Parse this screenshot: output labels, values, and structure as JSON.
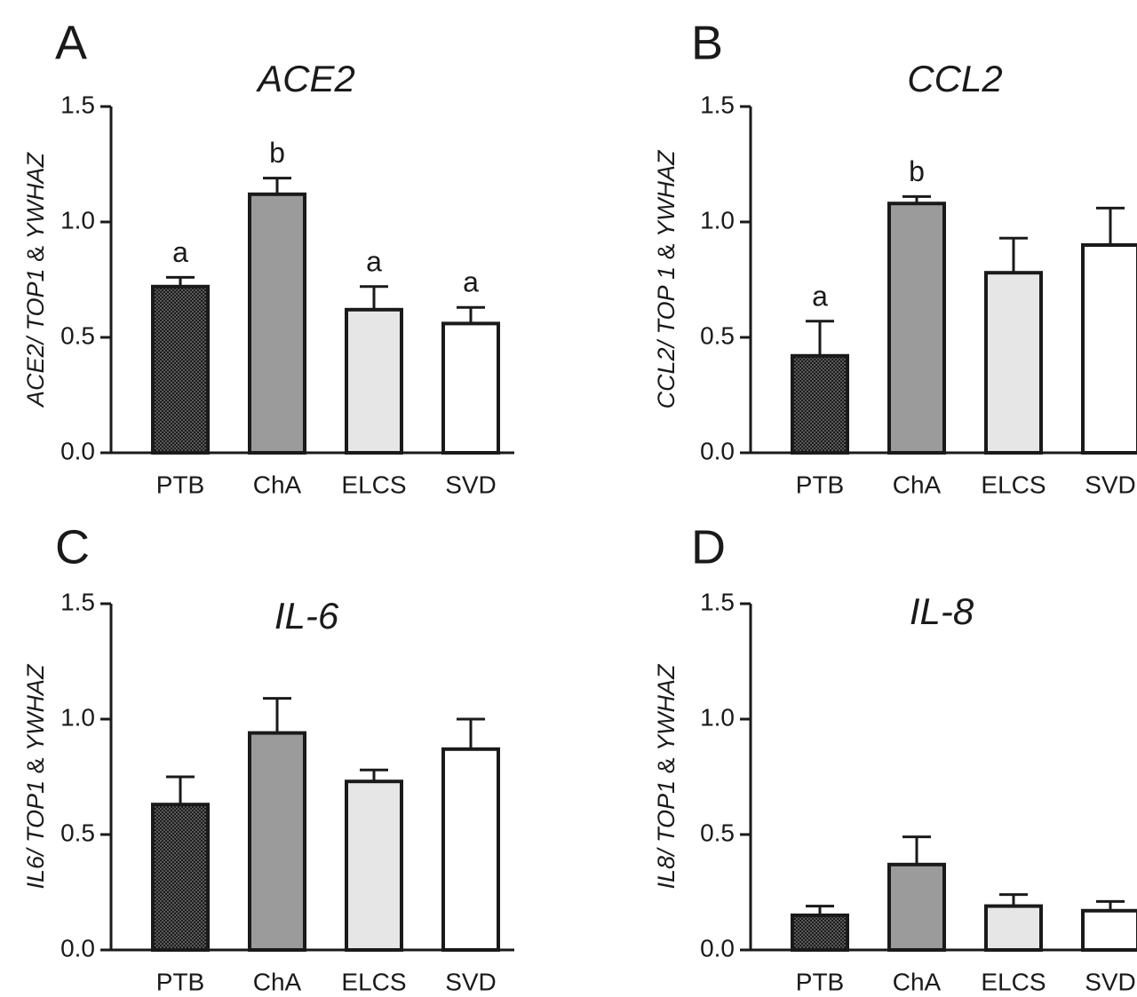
{
  "chart_data": [
    {
      "panel": "A",
      "type": "bar",
      "title": "ACE2",
      "ylabel_parts": [
        {
          "text": "ACE2/ TOP1",
          "italic": true
        },
        {
          "text": " & ",
          "italic": false
        },
        {
          "text": "YWHAZ",
          "italic": true
        }
      ],
      "categories": [
        "PTB",
        "ChA",
        "ELCS",
        "SVD"
      ],
      "values": [
        0.72,
        1.12,
        0.62,
        0.56
      ],
      "errors": [
        0.04,
        0.07,
        0.1,
        0.07
      ],
      "significance": [
        "a",
        "b",
        "a",
        "a"
      ],
      "ylim": [
        0,
        1.5
      ],
      "yticks": [
        "0.0",
        "0.5",
        "1.0",
        "1.5"
      ],
      "fills": [
        "pattern-dots",
        "#9b9b9b",
        "#e6e6e6",
        "#ffffff"
      ]
    },
    {
      "panel": "B",
      "type": "bar",
      "title": "CCL2",
      "ylabel_parts": [
        {
          "text": "CCL2/ TOP 1",
          "italic": true
        },
        {
          "text": " & ",
          "italic": false
        },
        {
          "text": "YWHAZ",
          "italic": true
        }
      ],
      "categories": [
        "PTB",
        "ChA",
        "ELCS",
        "SVD"
      ],
      "values": [
        0.42,
        1.08,
        0.78,
        0.9
      ],
      "errors": [
        0.15,
        0.03,
        0.15,
        0.16
      ],
      "significance": [
        "a",
        "b",
        "",
        ""
      ],
      "ylim": [
        0,
        1.5
      ],
      "yticks": [
        "0.0",
        "0.5",
        "1.0",
        "1.5"
      ],
      "fills": [
        "pattern-dots",
        "#9b9b9b",
        "#e6e6e6",
        "#ffffff"
      ]
    },
    {
      "panel": "C",
      "type": "bar",
      "title": "IL-6",
      "ylabel_parts": [
        {
          "text": "IL6/ TOP1",
          "italic": true
        },
        {
          "text": " & ",
          "italic": false
        },
        {
          "text": "YWHAZ",
          "italic": true
        }
      ],
      "categories": [
        "PTB",
        "ChA",
        "ELCS",
        "SVD"
      ],
      "values": [
        0.63,
        0.94,
        0.73,
        0.87
      ],
      "errors": [
        0.12,
        0.15,
        0.05,
        0.13
      ],
      "significance": [
        "",
        "",
        "",
        ""
      ],
      "ylim": [
        0,
        1.5
      ],
      "yticks": [
        "0.0",
        "0.5",
        "1.0",
        "1.5"
      ],
      "fills": [
        "pattern-dots",
        "#9b9b9b",
        "#e6e6e6",
        "#ffffff"
      ]
    },
    {
      "panel": "D",
      "type": "bar",
      "title": "IL-8",
      "ylabel_parts": [
        {
          "text": "IL8/ TOP1",
          "italic": true
        },
        {
          "text": " & ",
          "italic": false
        },
        {
          "text": "YWHAZ",
          "italic": true
        }
      ],
      "categories": [
        "PTB",
        "ChA",
        "ELCS",
        "SVD"
      ],
      "values": [
        0.15,
        0.37,
        0.19,
        0.17
      ],
      "errors": [
        0.04,
        0.12,
        0.05,
        0.04
      ],
      "significance": [
        "",
        "",
        "",
        ""
      ],
      "ylim": [
        0,
        1.5
      ],
      "yticks": [
        "0.0",
        "0.5",
        "1.0",
        "1.5"
      ],
      "fills": [
        "pattern-dots",
        "#9b9b9b",
        "#e6e6e6",
        "#ffffff"
      ]
    }
  ]
}
